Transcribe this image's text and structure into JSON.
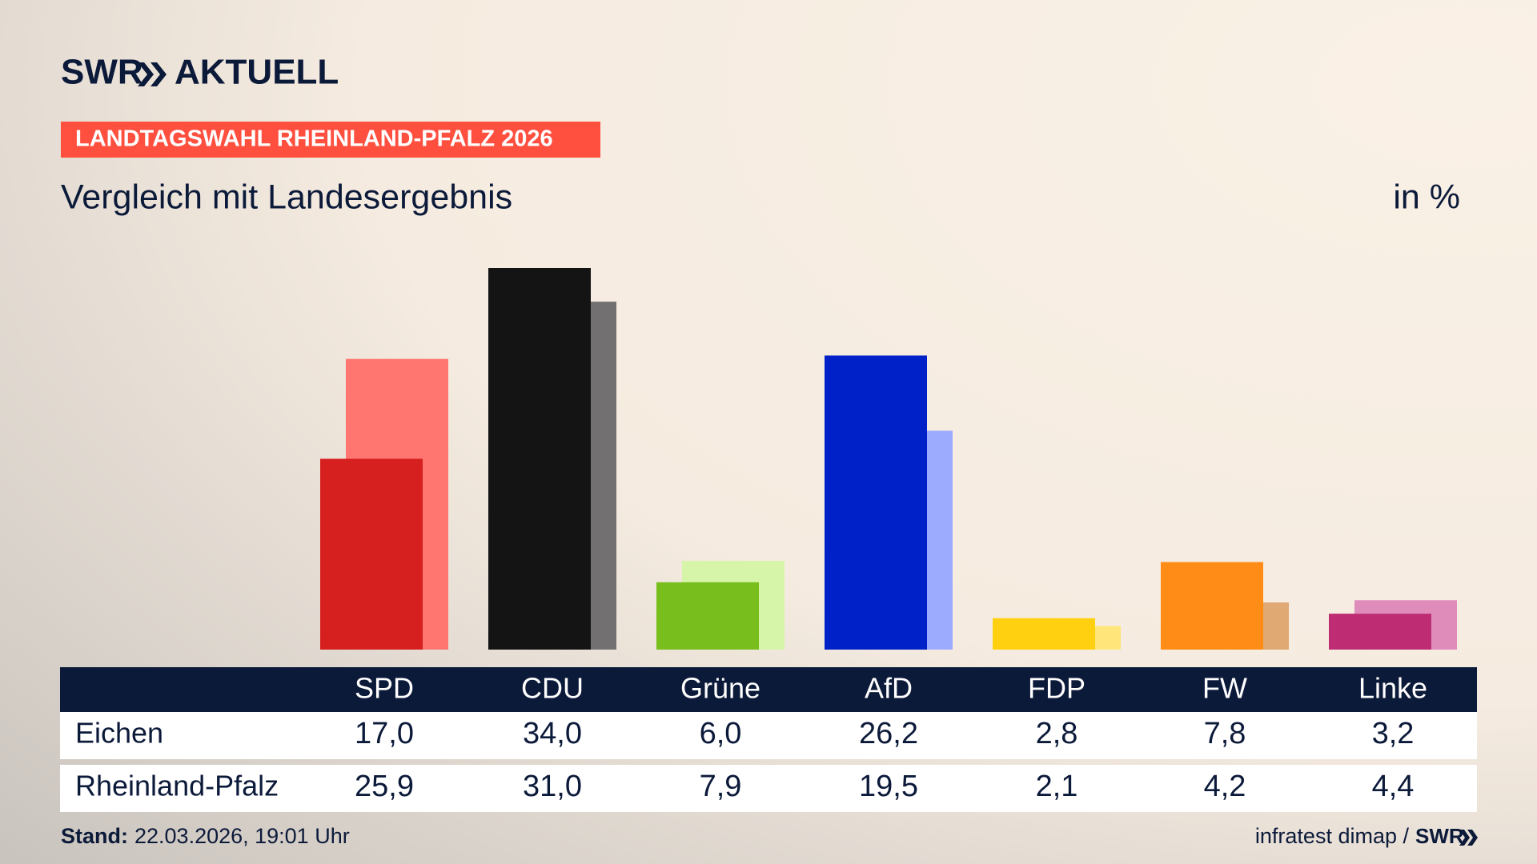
{
  "header": {
    "logo_left": "SWR",
    "logo_right": "AKTUELL",
    "badge": "LANDTAGSWAHL RHEINLAND-PFALZ 2026"
  },
  "chart_data": {
    "type": "bar",
    "title": "Vergleich mit Landesergebnis",
    "unit_label": "in %",
    "categories": [
      "SPD",
      "CDU",
      "Grüne",
      "AfD",
      "FDP",
      "FW",
      "Linke"
    ],
    "series": [
      {
        "name": "Eichen",
        "colors": [
          "#d61f1f",
          "#141414",
          "#78be1c",
          "#0021c8",
          "#ffd010",
          "#ff8c17",
          "#be2d73"
        ],
        "values": [
          17.0,
          34.0,
          6.0,
          26.2,
          2.8,
          7.8,
          3.2
        ],
        "value_labels": [
          "17,0",
          "34,0",
          "6,0",
          "26,2",
          "2,8",
          "7,8",
          "3,2"
        ]
      },
      {
        "name": "Rheinland-Pfalz",
        "colors": [
          "#ff7570",
          "#727070",
          "#d6f5a8",
          "#9dabff",
          "#ffe57a",
          "#e0a872",
          "#e08cba"
        ],
        "values": [
          25.9,
          31.0,
          7.9,
          19.5,
          2.1,
          4.2,
          4.4
        ],
        "value_labels": [
          "25,9",
          "31,0",
          "7,9",
          "19,5",
          "2,1",
          "4,2",
          "4,4"
        ]
      }
    ]
  },
  "footer": {
    "stand_label": "Stand:",
    "stand": "22.03.2026, 19:01 Uhr",
    "source": "infratest dimap /",
    "brand": "SWR"
  }
}
